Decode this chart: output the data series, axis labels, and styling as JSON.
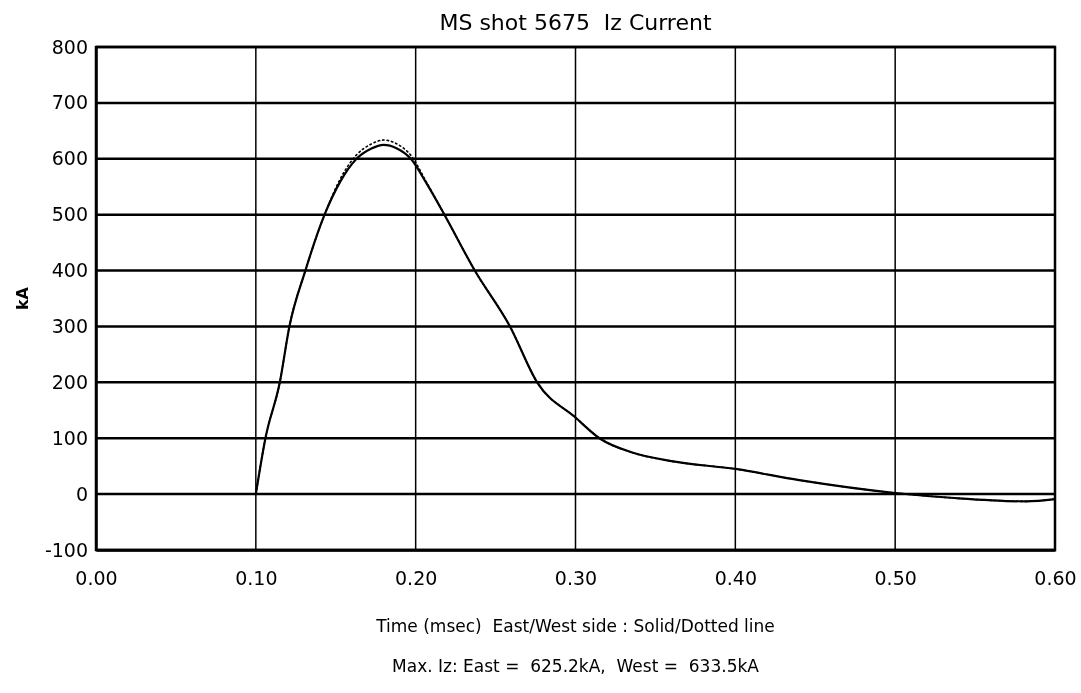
{
  "chart_data": {
    "type": "line",
    "title": "MS shot 5675  Iz Current",
    "xlabel": "Time (msec)  East/West side : Solid/Dotted line",
    "ylabel": "kA",
    "annotations": [
      "Max. Iz: East =  625.2kA,  West =  633.5kA"
    ],
    "xlim": [
      0,
      0.6
    ],
    "ylim": [
      -100,
      800
    ],
    "xticks": [
      {
        "value": 0,
        "label": "0.00"
      },
      {
        "value": 0.1,
        "label": "0.10"
      },
      {
        "value": 0.2,
        "label": "0.20"
      },
      {
        "value": 0.3,
        "label": "0.30"
      },
      {
        "value": 0.4,
        "label": "0.40"
      },
      {
        "value": 0.5,
        "label": "0.50"
      },
      {
        "value": 0.6,
        "label": "0.60"
      }
    ],
    "yticks": [
      -100,
      0,
      100,
      200,
      300,
      400,
      500,
      600,
      700,
      800
    ],
    "grid": true,
    "marker": "none",
    "series": [
      {
        "color": "#000000",
        "line_style": "solid",
        "x": [
          0.1,
          0.106,
          0.115,
          0.121,
          0.131,
          0.143,
          0.153,
          0.163,
          0.172,
          0.18,
          0.188,
          0.197,
          0.207,
          0.218,
          0.237,
          0.259,
          0.276,
          0.3,
          0.315,
          0.336,
          0.36,
          0.4,
          0.44,
          0.5,
          0.537,
          0.582,
          0.6
        ],
        "values": [
          0,
          100,
          200,
          300,
          400,
          500,
          560,
          600,
          618,
          625,
          619,
          600,
          555,
          500,
          400,
          300,
          200,
          137,
          100,
          74,
          59,
          45,
          25,
          2,
          -7,
          -13,
          -9
        ]
      },
      {
        "color": "#000000",
        "line_style": "dotted",
        "x": [
          0.1,
          0.106,
          0.115,
          0.121,
          0.131,
          0.143,
          0.153,
          0.163,
          0.172,
          0.18,
          0.188,
          0.197,
          0.207,
          0.218,
          0.237,
          0.259,
          0.276,
          0.3,
          0.315,
          0.336,
          0.36,
          0.4,
          0.44,
          0.5,
          0.537,
          0.582,
          0.6
        ],
        "values": [
          0,
          100,
          200,
          300,
          400,
          500,
          565,
          607,
          626,
          633.5,
          627,
          606,
          557,
          500,
          400,
          300,
          200,
          137,
          100,
          74,
          59,
          45,
          25,
          2,
          -7,
          -13,
          -9
        ]
      }
    ]
  }
}
